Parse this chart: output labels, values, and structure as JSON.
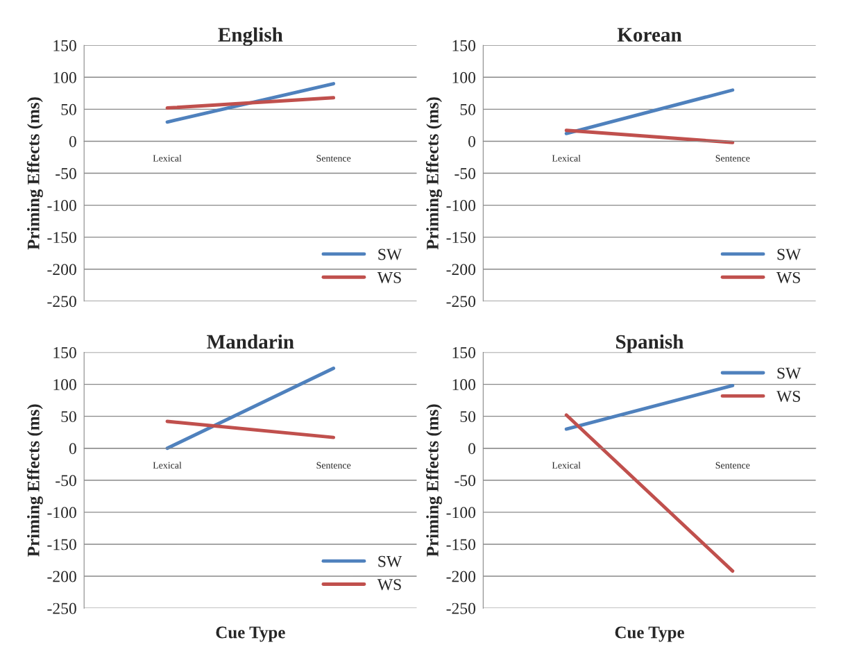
{
  "chart_data": [
    {
      "type": "line",
      "title": "English",
      "ylabel": "Priming Effects (ms)",
      "categories": [
        "Lexical",
        "Sentence"
      ],
      "ylim": [
        -250,
        150
      ],
      "yticks": [
        -250,
        -200,
        -150,
        -100,
        -50,
        0,
        50,
        100,
        150
      ],
      "grid": "y",
      "legend": "bottom right",
      "series": [
        {
          "name": "SW",
          "color": "#4f81bd",
          "values": [
            30,
            90
          ]
        },
        {
          "name": "WS",
          "color": "#c0504d",
          "values": [
            52,
            68
          ]
        }
      ]
    },
    {
      "type": "line",
      "title": "Korean",
      "ylabel": "Priming Effects (ms)",
      "categories": [
        "Lexical",
        "Sentence"
      ],
      "ylim": [
        -250,
        150
      ],
      "yticks": [
        -250,
        -200,
        -150,
        -100,
        -50,
        0,
        50,
        100,
        150
      ],
      "grid": "y",
      "legend": "bottom right",
      "series": [
        {
          "name": "SW",
          "color": "#4f81bd",
          "values": [
            12,
            80
          ]
        },
        {
          "name": "WS",
          "color": "#c0504d",
          "values": [
            17,
            -2
          ]
        }
      ]
    },
    {
      "type": "line",
      "title": "Mandarin",
      "ylabel": "Priming Effects (ms)",
      "xlabel": "Cue Type",
      "categories": [
        "Lexical",
        "Sentence"
      ],
      "ylim": [
        -250,
        150
      ],
      "yticks": [
        -250,
        -200,
        -150,
        -100,
        -50,
        0,
        50,
        100,
        150
      ],
      "grid": "y",
      "legend": "bottom right",
      "series": [
        {
          "name": "SW",
          "color": "#4f81bd",
          "values": [
            0,
            125
          ]
        },
        {
          "name": "WS",
          "color": "#c0504d",
          "values": [
            42,
            17
          ]
        }
      ]
    },
    {
      "type": "line",
      "title": "Spanish",
      "ylabel": "Priming Effects (ms)",
      "xlabel": "Cue Type",
      "categories": [
        "Lexical",
        "Sentence"
      ],
      "ylim": [
        -250,
        150
      ],
      "yticks": [
        -250,
        -200,
        -150,
        -100,
        -50,
        0,
        50,
        100,
        150
      ],
      "grid": "y",
      "legend": "top right",
      "series": [
        {
          "name": "SW",
          "color": "#4f81bd",
          "values": [
            30,
            98
          ]
        },
        {
          "name": "WS",
          "color": "#c0504d",
          "values": [
            52,
            -192
          ]
        }
      ]
    }
  ]
}
